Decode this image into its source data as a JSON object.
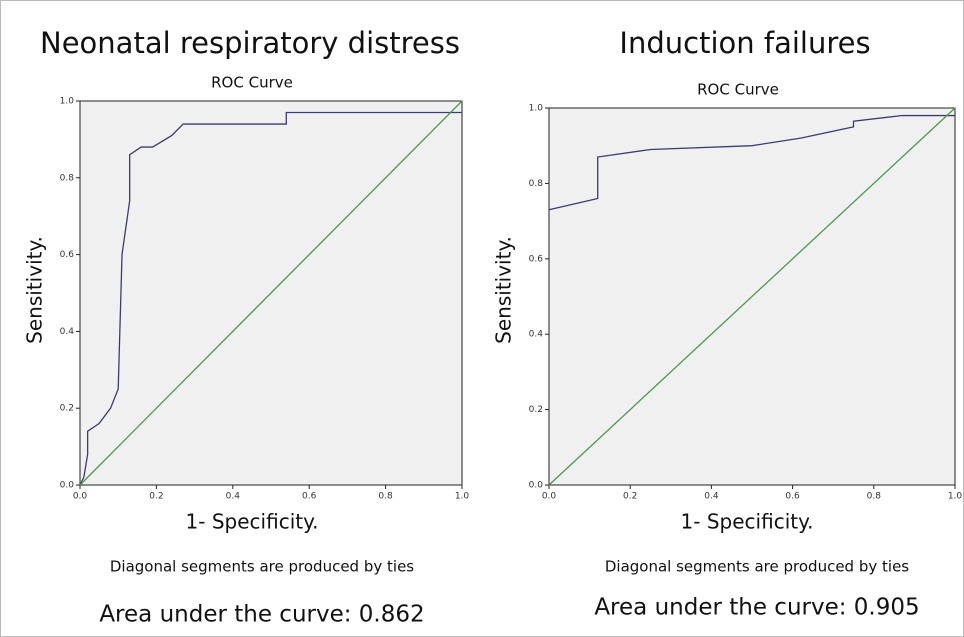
{
  "chart_data": [
    {
      "type": "line",
      "title": "Neonatal respiratory distress",
      "subtitle": "ROC Curve",
      "xlabel": "1- Specificity.",
      "ylabel": "Sensitivity.",
      "annotations": [
        "Diagonal segments are produced by ties",
        "Area under the curve: 0.862"
      ],
      "xlim": [
        0,
        1
      ],
      "ylim": [
        0,
        1
      ],
      "xticks": [
        {
          "value": 0,
          "label": "0.0"
        },
        0.2,
        0.4,
        0.6,
        0.8,
        {
          "value": 1,
          "label": "1.0"
        }
      ],
      "yticks": [
        {
          "value": 0,
          "label": "0.0"
        },
        0.2,
        0.4,
        0.6,
        0.8,
        {
          "value": 1,
          "label": "1.0"
        }
      ],
      "series": [
        {
          "color": "#3c3c6e",
          "x": [
            0,
            0.01,
            0.02,
            0.02,
            0.05,
            0.08,
            0.1,
            0.11,
            0.13,
            0.13,
            0.16,
            0.19,
            0.24,
            0.27,
            0.54,
            0.54,
            1
          ],
          "values": [
            0,
            0.02,
            0.08,
            0.14,
            0.16,
            0.2,
            0.25,
            0.6,
            0.74,
            0.86,
            0.88,
            0.88,
            0.91,
            0.94,
            0.94,
            0.97,
            0.97
          ]
        },
        {
          "color": "#4a9a4a",
          "x": [
            0,
            1
          ],
          "values": [
            0,
            1
          ]
        }
      ]
    },
    {
      "type": "line",
      "title": "Induction failures",
      "subtitle": "ROC Curve",
      "xlabel": "1- Specificity.",
      "ylabel": "Sensitivity.",
      "annotations": [
        "Diagonal segments are produced by ties",
        "Area under the curve: 0.905"
      ],
      "xlim": [
        0,
        1
      ],
      "ylim": [
        0,
        1
      ],
      "xticks": [
        {
          "value": 0,
          "label": "0.0"
        },
        0.2,
        0.4,
        0.6,
        0.8,
        {
          "value": 1,
          "label": "1.0"
        }
      ],
      "yticks": [
        {
          "value": 0,
          "label": "0.0"
        },
        0.2,
        0.4,
        0.6,
        0.8,
        {
          "value": 1,
          "label": "1.0"
        }
      ],
      "series": [
        {
          "color": "#3c3c6e",
          "x": [
            0,
            0.12,
            0.12,
            0.25,
            0.5,
            0.62,
            0.75,
            0.75,
            0.87,
            1
          ],
          "values": [
            0.73,
            0.76,
            0.87,
            0.89,
            0.9,
            0.92,
            0.95,
            0.965,
            0.98,
            0.98
          ]
        },
        {
          "color": "#4a9a4a",
          "x": [
            0,
            1
          ],
          "values": [
            0,
            1
          ]
        }
      ]
    }
  ]
}
